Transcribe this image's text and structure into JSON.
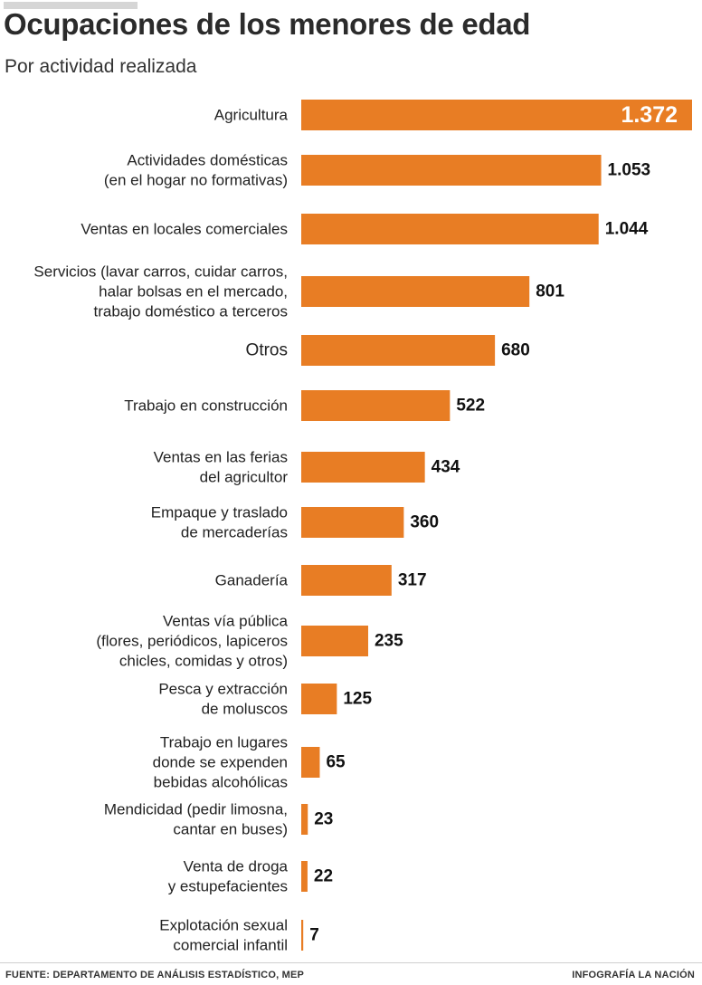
{
  "header": {
    "title": "Ocupaciones de los menores de edad",
    "subtitle": "Por actividad realizada"
  },
  "footer": {
    "source": "FUENTE:  DEPARTAMENTO DE ANÁLISIS ESTADÍSTICO, MEP",
    "credit": "INFOGRAFÍA LA NACIÓN"
  },
  "colors": {
    "bar": "#e87d24"
  },
  "chart_data": {
    "type": "bar",
    "orientation": "horizontal",
    "title": "Ocupaciones de los menores de edad",
    "subtitle": "Por actividad realizada",
    "xlim": [
      0,
      1372
    ],
    "grid": false,
    "legend": "none",
    "categories": [
      [
        "Agricultura"
      ],
      [
        "Actividades domésticas",
        "(en el hogar no formativas)"
      ],
      [
        "Ventas en locales comerciales"
      ],
      [
        "Servicios (lavar carros, cuidar carros,",
        "halar bolsas en el mercado,",
        "trabajo doméstico a terceros"
      ],
      [
        "Otros"
      ],
      [
        "Trabajo en construcción"
      ],
      [
        "Ventas en las ferias",
        "del agricultor"
      ],
      [
        "Empaque y traslado",
        "de mercaderías"
      ],
      [
        "Ganadería"
      ],
      [
        "Ventas vía pública",
        "(flores, periódicos, lapiceros",
        "chicles, comidas y otros)"
      ],
      [
        "Pesca y extracción",
        "de moluscos"
      ],
      [
        "Trabajo en lugares",
        "donde se expenden",
        "bebidas alcohólicas"
      ],
      [
        "Mendicidad (pedir limosna,",
        "cantar en buses)"
      ],
      [
        "Venta de droga",
        "y estupefacientes"
      ],
      [
        "Explotación sexual",
        "comercial infantil"
      ]
    ],
    "values": [
      1372,
      1053,
      1044,
      801,
      680,
      522,
      434,
      360,
      317,
      235,
      125,
      65,
      23,
      22,
      7
    ],
    "value_labels": [
      "1.372",
      "1.053",
      "1.044",
      "801",
      "680",
      "522",
      "434",
      "360",
      "317",
      "235",
      "125",
      "65",
      "23",
      "22",
      "7"
    ]
  }
}
